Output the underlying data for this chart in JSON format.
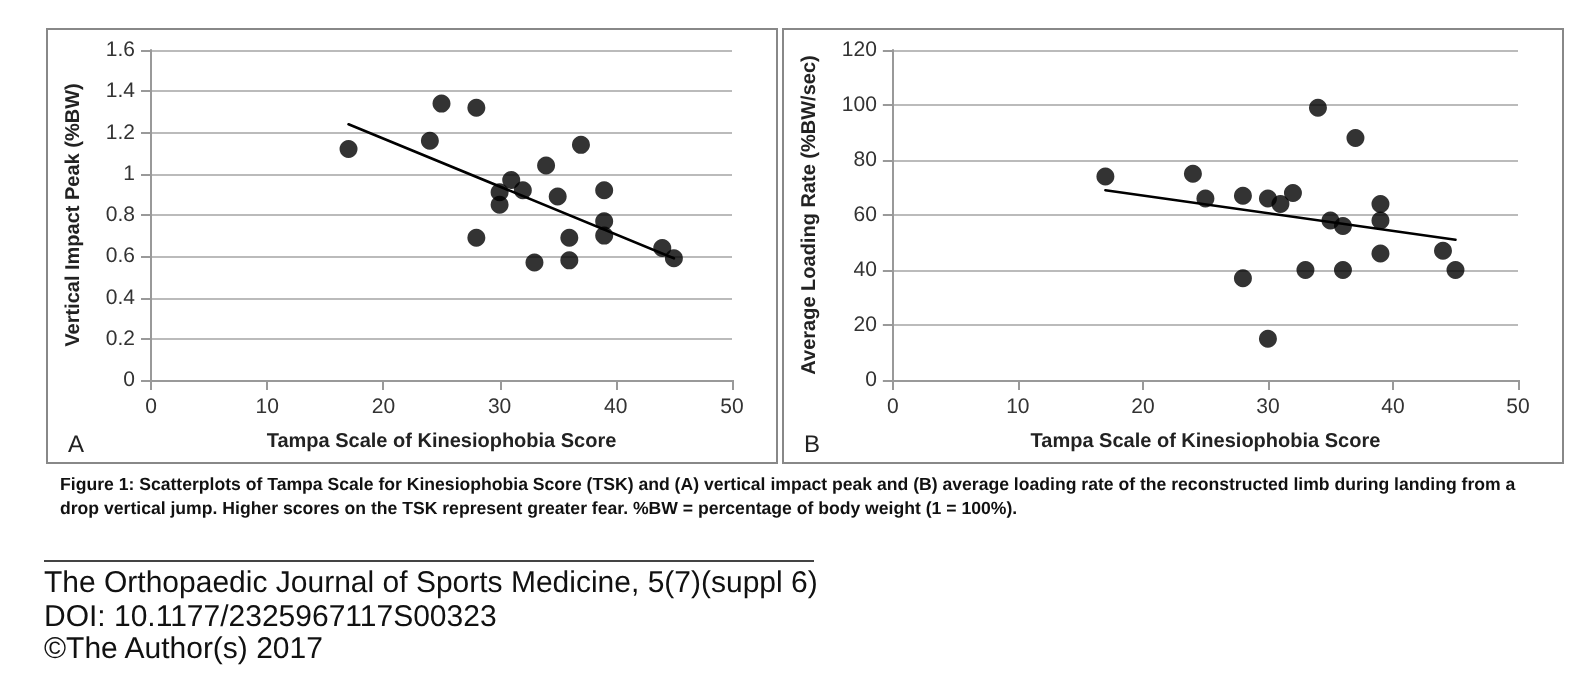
{
  "chart_data": [
    {
      "type": "scatter",
      "xlabel": "Tampa Scale of Kinesiophobia Score",
      "ylabel": "Vertical Impact Peak (%BW)",
      "xlim": [
        0,
        50
      ],
      "xticks": [
        0,
        10,
        20,
        30,
        40,
        50
      ],
      "ylim": [
        0,
        1.6
      ],
      "yticks": [
        0,
        0.2,
        0.4,
        0.6,
        0.8,
        1,
        1.2,
        1.4,
        1.6
      ],
      "grid": "y",
      "annotations": [
        "A"
      ],
      "series": [
        {
          "type": "scatter",
          "color": "#000000",
          "marker": "circle",
          "x": [
            17,
            24,
            25,
            28,
            28,
            30,
            30,
            31,
            32,
            33,
            34,
            35,
            36,
            36,
            37,
            39,
            39,
            39,
            44,
            45
          ],
          "values": [
            1.12,
            1.16,
            1.34,
            1.32,
            0.69,
            0.91,
            0.85,
            0.97,
            0.92,
            0.57,
            1.04,
            0.89,
            0.69,
            0.58,
            1.14,
            0.92,
            0.77,
            0.7,
            0.64,
            0.59
          ]
        },
        {
          "type": "line",
          "color": "#000000",
          "marker": "none",
          "line_style": "solid",
          "x": [
            17,
            45
          ],
          "values": [
            1.24,
            0.59
          ]
        }
      ]
    },
    {
      "type": "scatter",
      "xlabel": "Tampa Scale of Kinesiophobia Score",
      "ylabel": "Average Loading Rate (%BW/sec)",
      "xlim": [
        0,
        50
      ],
      "xticks": [
        0,
        10,
        20,
        30,
        40,
        50
      ],
      "ylim": [
        0,
        120
      ],
      "yticks": [
        0,
        20,
        40,
        60,
        80,
        100,
        120
      ],
      "grid": "y",
      "annotations": [
        "B",
        "Figure 1: Scatterplots of Tampa Scale for Kinesiophobia Score (TSK) and (A) vertical impact peak and (B) average loading rate of the reconstructed limb during landing from a drop vertical jump. Higher scores on the TSK represent greater fear. %BW = percentage of body weight (1 = 100%).",
        "The Orthopaedic Journal of Sports Medicine, 5(7)(suppl 6)",
        "DOI: 10.1177/2325967117S00323",
        "©The Author(s) 2017"
      ],
      "series": [
        {
          "type": "scatter",
          "color": "#000000",
          "marker": "circle",
          "x": [
            17,
            24,
            25,
            28,
            28,
            30,
            30,
            31,
            32,
            33,
            34,
            35,
            36,
            36,
            37,
            39,
            39,
            39,
            44,
            45
          ],
          "values": [
            74,
            75,
            66,
            67,
            37,
            66,
            15,
            64,
            68,
            40,
            99,
            58,
            56,
            40,
            88,
            64,
            58,
            46,
            47,
            40
          ]
        },
        {
          "type": "line",
          "color": "#000000",
          "marker": "none",
          "line_style": "solid",
          "x": [
            17,
            45
          ],
          "values": [
            69,
            51
          ]
        }
      ]
    }
  ]
}
